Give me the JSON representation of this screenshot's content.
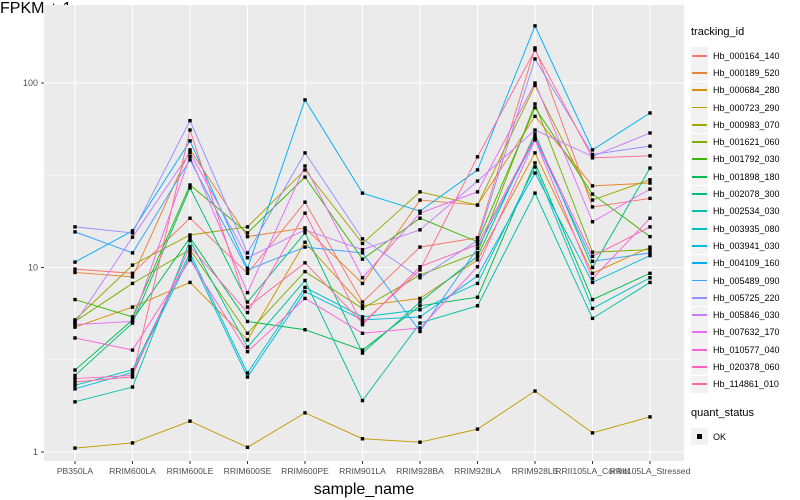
{
  "figure": {
    "xlabel": "sample_name",
    "ylabel": "FPKM + 1",
    "legend": {
      "tracking_title": "tracking_id",
      "quant_title": "quant_status",
      "quant_ok_label": "OK",
      "quant_ok_marker": "filled-black-square"
    }
  },
  "colors": {
    "panel_bg": "#EBEBEB",
    "grid": "#FFFFFF",
    "tick_text": "#4D4D4D",
    "tick_mark": "#333333",
    "axis_title_text": "#1a1a1a",
    "point": "#000000",
    "legend_key_bg": "#F2F2F2"
  },
  "chart_data": {
    "type": "line",
    "title": "",
    "xlabel": "sample_name",
    "ylabel": "FPKM + 1",
    "y_scale": "log10",
    "y_ticks": [
      1,
      10,
      100
    ],
    "y_minor_ticks": [
      3.1623,
      31.623
    ],
    "ylim": [
      0.9,
      280
    ],
    "grid": true,
    "legend_position": "right",
    "marker": "black-filled-square (quant_status = OK)",
    "x_categories": [
      "PB350LA",
      "RRIM600LA",
      "RRIM600LE",
      "RRIM600SE",
      "RRIM600PE",
      "RRIM901LA",
      "RRIM928BA",
      "RRIM928LA",
      "RRIM928LE",
      "RRII105LA_Control",
      "RRII105LA_Stressed"
    ],
    "series": [
      {
        "name": "Hb_000164_140",
        "color": "#F8766D",
        "values": [
          9.8,
          9.3,
          18.5,
          9.3,
          22.6,
          6.5,
          12.9,
          14.5,
          155,
          21.3,
          23.7
        ]
      },
      {
        "name": "Hb_000189_520",
        "color": "#EA8331",
        "values": [
          9.4,
          8.9,
          43.4,
          14.7,
          16.4,
          8.2,
          23.2,
          21.8,
          66,
          27.7,
          28.7
        ]
      },
      {
        "name": "Hb_000684_280",
        "color": "#D89000",
        "values": [
          4.75,
          6.1,
          8.3,
          4.05,
          13.7,
          6.2,
          6.8,
          11.0,
          41.8,
          9.3,
          12.9
        ]
      },
      {
        "name": "Hb_000723_290",
        "color": "#C09B00",
        "values": [
          1.05,
          1.12,
          1.47,
          1.06,
          1.63,
          1.18,
          1.13,
          1.33,
          2.14,
          1.27,
          1.55
        ]
      },
      {
        "name": "Hb_000983_070",
        "color": "#A3A500",
        "values": [
          5.2,
          10.3,
          15.0,
          16.6,
          33.8,
          13.5,
          25.7,
          21.8,
          97,
          23.2,
          29.9
        ]
      },
      {
        "name": "Hb_001621_060",
        "color": "#7CAE00",
        "values": [
          5.1,
          8.2,
          12.5,
          4.4,
          9.5,
          6.0,
          9.1,
          12.0,
          77,
          12.1,
          12.5
        ]
      },
      {
        "name": "Hb_001792_030",
        "color": "#39B600",
        "values": [
          6.7,
          5.4,
          28.0,
          15.4,
          30.9,
          11.1,
          18.5,
          13.8,
          73.5,
          25.0,
          14.7
        ]
      },
      {
        "name": "Hb_001898_180",
        "color": "#00BB4E",
        "values": [
          2.78,
          5.2,
          14.5,
          5.1,
          4.6,
          3.57,
          6.2,
          6.9,
          36.9,
          6.7,
          9.3
        ]
      },
      {
        "name": "Hb_002078_300",
        "color": "#00BF7D",
        "values": [
          2.6,
          5.0,
          27.0,
          6.5,
          15.4,
          3.44,
          6.5,
          11.5,
          53,
          10.0,
          34.6
        ]
      },
      {
        "name": "Hb_002534_030",
        "color": "#00C1A3",
        "values": [
          1.87,
          2.25,
          14.0,
          3.7,
          8.5,
          1.9,
          5.0,
          6.2,
          25.3,
          5.3,
          8.3
        ]
      },
      {
        "name": "Hb_003935_080",
        "color": "#00BFC4",
        "values": [
          2.3,
          2.79,
          12.0,
          2.68,
          7.8,
          5.4,
          5.9,
          8.2,
          35.1,
          6.0,
          8.8
        ]
      },
      {
        "name": "Hb_003941_030",
        "color": "#00BAE0",
        "values": [
          2.2,
          2.7,
          11.5,
          2.55,
          7.4,
          5.2,
          5.4,
          9.0,
          32.5,
          8.3,
          11.6
        ]
      },
      {
        "name": "Hb_004109_160",
        "color": "#00B0F6",
        "values": [
          10.7,
          15.8,
          48.6,
          9.9,
          81,
          25.3,
          20.2,
          33.8,
          204,
          43.4,
          68.8
        ]
      },
      {
        "name": "Hb_005489_090",
        "color": "#35A2FF",
        "values": [
          15.6,
          12.0,
          38.3,
          9.7,
          12.9,
          12.0,
          4.5,
          12.7,
          50,
          10.8,
          12.0
        ]
      },
      {
        "name": "Hb_005725_220",
        "color": "#9590FF",
        "values": [
          16.6,
          15.4,
          62.5,
          12.0,
          41.8,
          14.3,
          8.8,
          14.0,
          135,
          41.0,
          45.5
        ]
      },
      {
        "name": "Hb_005846_030",
        "color": "#C77CFF",
        "values": [
          5.0,
          14.6,
          42.0,
          11.3,
          16.0,
          12.5,
          16.0,
          29.4,
          55.6,
          40.0,
          53.6
        ]
      },
      {
        "name": "Hb_007632_170",
        "color": "#E76BF3",
        "values": [
          4.9,
          5.1,
          40.0,
          7.3,
          35.5,
          8.8,
          19.7,
          25.7,
          100,
          17.7,
          26.6
        ]
      },
      {
        "name": "Hb_010577_040",
        "color": "#FA62DB",
        "values": [
          4.15,
          3.57,
          11.0,
          3.5,
          6.8,
          4.4,
          4.7,
          10.1,
          49.2,
          8.7,
          18.5
        ]
      },
      {
        "name": "Hb_020378_060",
        "color": "#FF62BC",
        "values": [
          2.5,
          2.6,
          13.0,
          5.7,
          19.7,
          4.9,
          10.1,
          13.3,
          51,
          11.5,
          16.6
        ]
      },
      {
        "name": "Hb_114861_010",
        "color": "#FF6A98",
        "values": [
          2.4,
          2.55,
          55.6,
          6.1,
          10.6,
          5.0,
          9.7,
          39.8,
          151,
          39.3,
          40.3
        ]
      }
    ]
  }
}
